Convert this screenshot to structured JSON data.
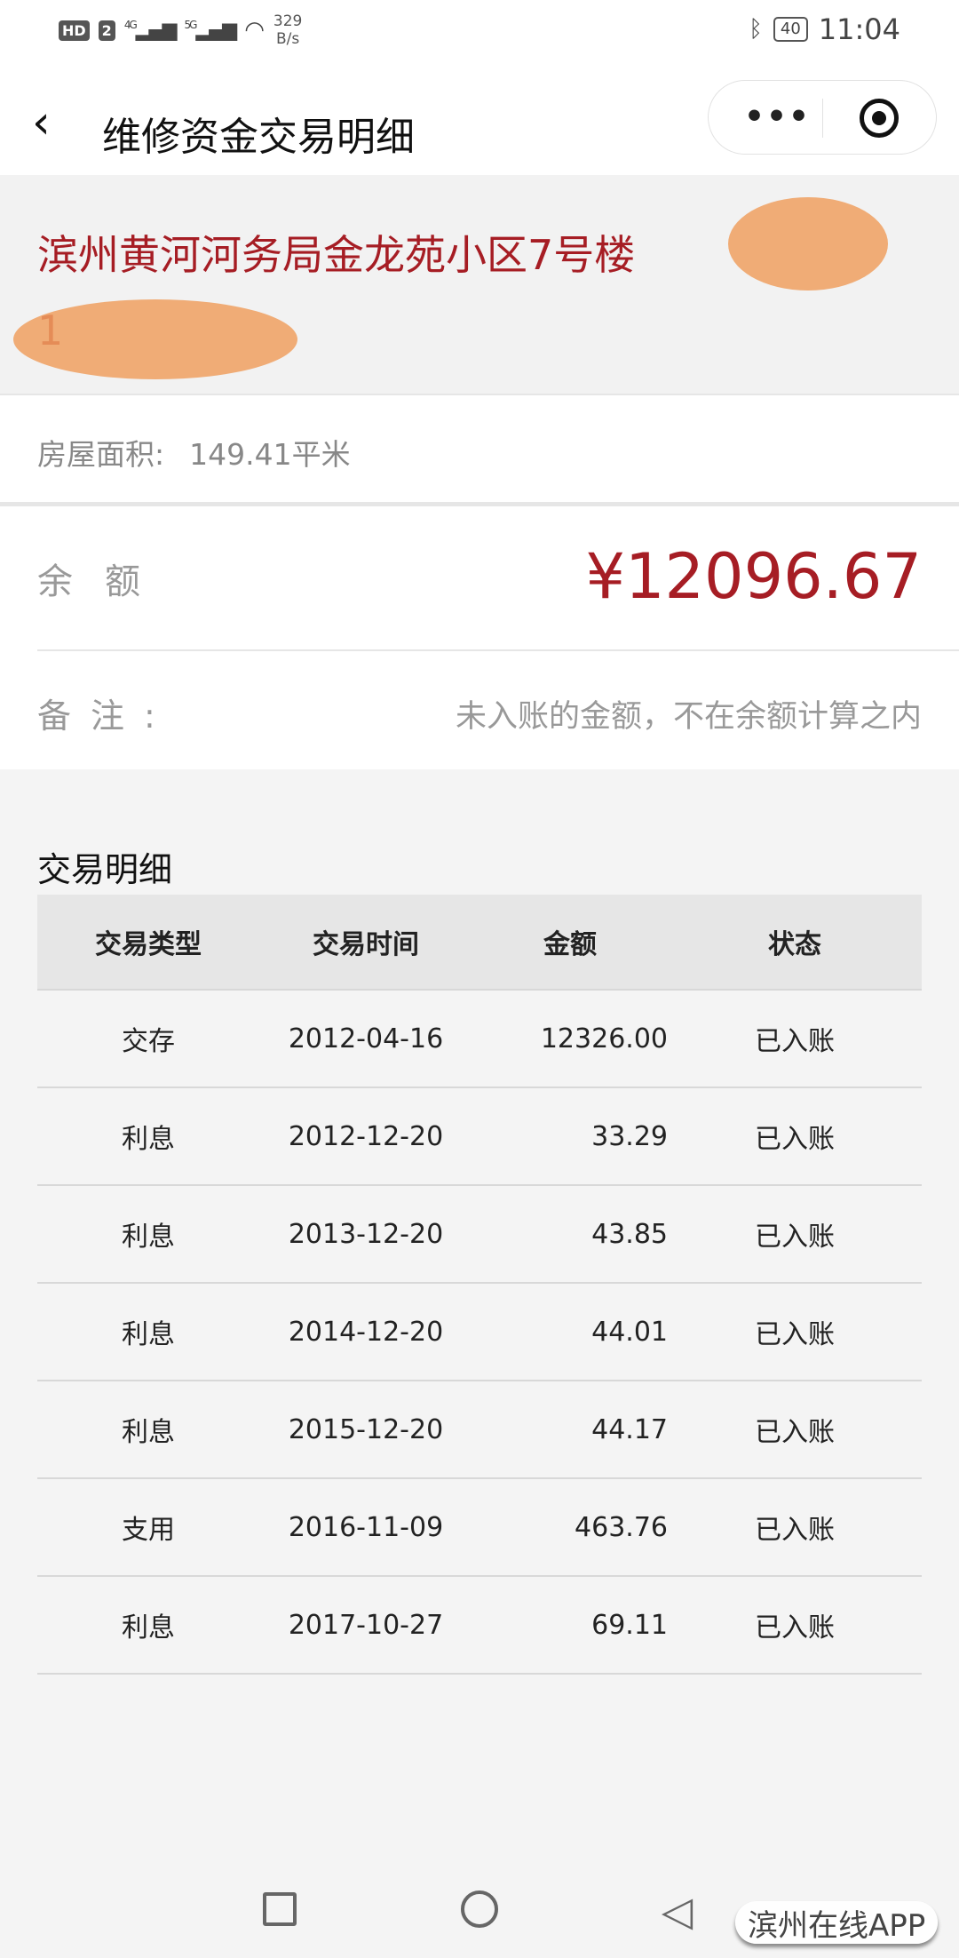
{
  "status_bar": {
    "hd": "HD",
    "sim": "2",
    "net1": "4G",
    "net2": "5G",
    "speed_value": "329",
    "speed_unit": "B/s",
    "battery": "40",
    "time": "11:04"
  },
  "header": {
    "title": "维修资金交易明细",
    "more_icon": "•••",
    "close_icon": "target-icon"
  },
  "property": {
    "address_line1": "滨州黄河河务局金龙苑小区7号楼",
    "address_line2": "1",
    "area_label": "房屋面积:",
    "area_value": "149.41平米"
  },
  "balance": {
    "label": "余额",
    "amount": "¥12096.67",
    "note_label": "备注:",
    "note_text": "未入账的金额，不在余额计算之内"
  },
  "colors": {
    "accent": "#a61d24",
    "scribble": "#f0a060"
  },
  "transactions": {
    "title": "交易明细",
    "columns": [
      "交易类型",
      "交易时间",
      "金额",
      "状态"
    ],
    "rows": [
      [
        "交存",
        "2012-04-16",
        "12326.00",
        "已入账"
      ],
      [
        "利息",
        "2012-12-20",
        "33.29",
        "已入账"
      ],
      [
        "利息",
        "2013-12-20",
        "43.85",
        "已入账"
      ],
      [
        "利息",
        "2014-12-20",
        "44.01",
        "已入账"
      ],
      [
        "利息",
        "2015-12-20",
        "44.17",
        "已入账"
      ],
      [
        "支用",
        "2016-11-09",
        "463.76",
        "已入账"
      ],
      [
        "利息",
        "2017-10-27",
        "69.11",
        "已入账"
      ]
    ]
  },
  "watermark": "滨州在线APP"
}
